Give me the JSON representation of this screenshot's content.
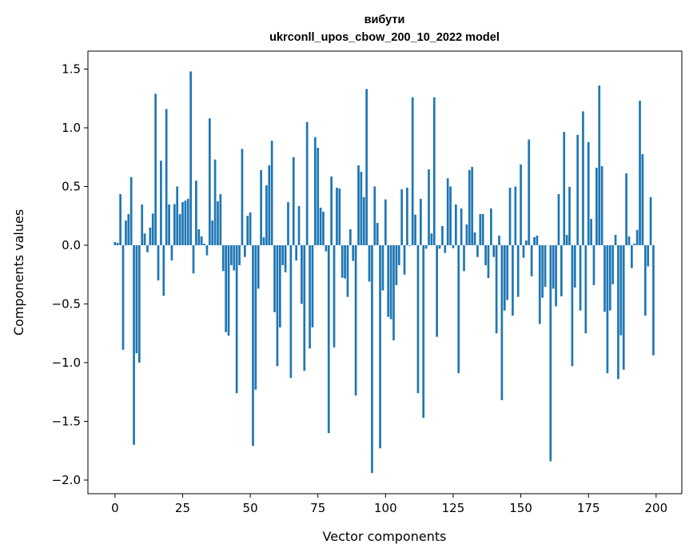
{
  "chart_data": {
    "type": "bar",
    "title": "вибути",
    "subtitle": "ukrconll_upos_cbow_200_10_2022 model",
    "xlabel": "Vector components",
    "ylabel": "Components values",
    "xlim": [
      -10,
      209.5
    ],
    "ylim": [
      -2.116,
      1.653
    ],
    "xticks": [
      0,
      25,
      50,
      75,
      100,
      125,
      150,
      175,
      200
    ],
    "yticks": [
      -2.0,
      -1.5,
      -1.0,
      -0.5,
      0.0,
      0.5,
      1.0,
      1.5
    ],
    "grid": false,
    "bar_color": "#1f77b4",
    "values": [
      0.027,
      0.02,
      0.435,
      -0.89,
      0.21,
      0.265,
      0.58,
      -1.7,
      -0.92,
      -1.0,
      0.347,
      0.1,
      -0.06,
      0.15,
      0.27,
      1.29,
      -0.3,
      0.72,
      -0.43,
      1.16,
      0.347,
      -0.13,
      0.35,
      0.5,
      0.265,
      0.367,
      0.38,
      0.395,
      1.48,
      -0.24,
      0.55,
      0.136,
      0.075,
      0.014,
      -0.086,
      1.08,
      0.21,
      0.73,
      0.374,
      0.435,
      -0.22,
      -0.74,
      -0.77,
      -0.17,
      -0.215,
      -1.26,
      -0.17,
      0.82,
      -0.1,
      0.25,
      0.28,
      -1.71,
      -1.23,
      -0.37,
      0.64,
      0.068,
      0.51,
      0.68,
      0.89,
      -0.57,
      -1.03,
      -0.7,
      -0.17,
      -0.23,
      0.367,
      -1.13,
      0.75,
      -0.13,
      0.333,
      -0.5,
      -1.07,
      1.05,
      -0.88,
      -0.7,
      0.92,
      0.83,
      0.32,
      0.286,
      -0.052,
      -1.6,
      0.585,
      -0.87,
      0.49,
      0.483,
      -0.277,
      -0.283,
      -0.44,
      0.136,
      -0.134,
      -1.28,
      0.68,
      0.626,
      0.41,
      1.33,
      -0.31,
      -1.94,
      0.5,
      0.19,
      -1.73,
      -0.385,
      0.39,
      -0.61,
      -0.63,
      -0.81,
      -0.34,
      -0.17,
      0.476,
      -0.25,
      0.49,
      -0.005,
      1.26,
      0.26,
      -1.26,
      0.395,
      -1.47,
      -0.03,
      0.646,
      0.1,
      1.26,
      -0.78,
      -0.03,
      0.163,
      -0.066,
      0.57,
      0.5,
      -0.025,
      0.347,
      -1.09,
      0.313,
      -0.22,
      0.177,
      0.64,
      0.667,
      0.109,
      -0.1,
      0.265,
      0.265,
      -0.17,
      -0.28,
      0.313,
      -0.1,
      -0.75,
      0.082,
      -1.32,
      -0.556,
      -0.467,
      0.49,
      -0.6,
      0.5,
      -0.44,
      0.687,
      -0.107,
      0.04,
      0.9,
      -0.265,
      0.068,
      0.082,
      -0.67,
      -0.447,
      -0.354,
      0.0,
      -1.84,
      -0.37,
      -0.52,
      0.435,
      -0.435,
      0.965,
      0.088,
      0.497,
      -1.03,
      -0.36,
      0.94,
      -0.556,
      1.14,
      -0.75,
      0.878,
      0.224,
      -0.34,
      0.66,
      1.36,
      0.673,
      -0.567,
      -1.09,
      -0.556,
      -0.332,
      0.088,
      -1.14,
      -0.767,
      -1.06,
      0.612,
      0.075,
      -0.195,
      0.014,
      0.13,
      1.23,
      0.776,
      -0.6,
      -0.18,
      0.41,
      -0.937
    ]
  }
}
